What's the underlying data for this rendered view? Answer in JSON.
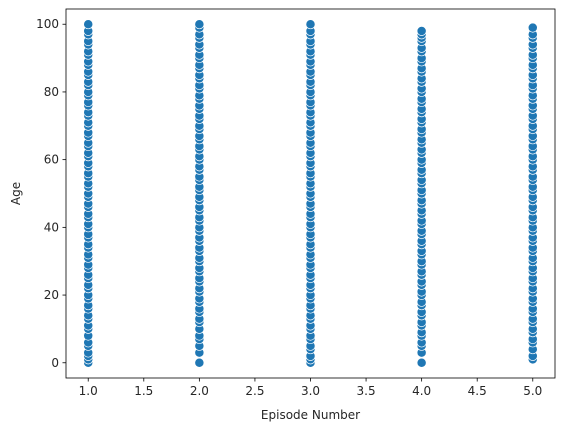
{
  "chart_data": {
    "type": "scatter",
    "title": "",
    "xlabel": "Episode Number",
    "ylabel": "Age",
    "xlim": [
      0.8,
      5.2
    ],
    "ylim": [
      -4.5,
      104.5
    ],
    "xticks": [
      1.0,
      1.5,
      2.0,
      2.5,
      3.0,
      3.5,
      4.0,
      4.5,
      5.0
    ],
    "xtick_labels": [
      "1.0",
      "1.5",
      "2.0",
      "2.5",
      "3.0",
      "3.5",
      "4.0",
      "4.5",
      "5.0"
    ],
    "yticks": [
      0,
      20,
      40,
      60,
      80,
      100
    ],
    "ytick_labels": [
      "0",
      "20",
      "40",
      "60",
      "80",
      "100"
    ],
    "grid": false,
    "marker_color": "#1f77b4",
    "marker_edge_color": "#ffffff",
    "series": [
      {
        "x": 1.0,
        "y": [
          0,
          1,
          2,
          3,
          5,
          6,
          8,
          10,
          11,
          13,
          14,
          16,
          17,
          19,
          20,
          22,
          23,
          25,
          26,
          28,
          29,
          31,
          32,
          34,
          35,
          37,
          38,
          40,
          41,
          43,
          44,
          46,
          47,
          49,
          50,
          52,
          53,
          55,
          56,
          58,
          59,
          61,
          62,
          64,
          65,
          67,
          68,
          70,
          71,
          73,
          74,
          76,
          77,
          79,
          80,
          82,
          83,
          85,
          86,
          88,
          89,
          91,
          92,
          94,
          95,
          97,
          98,
          100
        ]
      },
      {
        "x": 2.0,
        "y": [
          0,
          3,
          5,
          7,
          8,
          10,
          12,
          13,
          15,
          16,
          18,
          19,
          21,
          22,
          24,
          25,
          27,
          28,
          30,
          31,
          33,
          34,
          36,
          37,
          39,
          40,
          42,
          43,
          45,
          46,
          48,
          49,
          51,
          52,
          54,
          55,
          57,
          58,
          60,
          61,
          63,
          64,
          66,
          67,
          69,
          70,
          72,
          73,
          75,
          76,
          78,
          79,
          81,
          82,
          84,
          85,
          87,
          88,
          90,
          91,
          93,
          94,
          96,
          97,
          99,
          100
        ]
      },
      {
        "x": 3.0,
        "y": [
          0,
          1,
          2,
          4,
          5,
          7,
          8,
          10,
          11,
          13,
          14,
          16,
          17,
          19,
          20,
          22,
          23,
          25,
          26,
          28,
          29,
          31,
          32,
          34,
          35,
          37,
          38,
          40,
          41,
          43,
          44,
          46,
          47,
          49,
          50,
          52,
          53,
          55,
          56,
          58,
          59,
          61,
          62,
          64,
          65,
          67,
          68,
          70,
          71,
          73,
          74,
          76,
          77,
          79,
          80,
          82,
          83,
          85,
          86,
          88,
          89,
          91,
          92,
          94,
          95,
          97,
          98,
          100
        ]
      },
      {
        "x": 4.0,
        "y": [
          0,
          3,
          5,
          6,
          8,
          9,
          11,
          12,
          14,
          15,
          17,
          18,
          20,
          21,
          23,
          24,
          26,
          27,
          29,
          30,
          32,
          33,
          35,
          36,
          38,
          39,
          41,
          42,
          44,
          45,
          47,
          48,
          50,
          51,
          53,
          54,
          56,
          57,
          59,
          60,
          62,
          63,
          65,
          66,
          68,
          69,
          71,
          72,
          74,
          75,
          77,
          78,
          80,
          81,
          83,
          84,
          86,
          87,
          89,
          90,
          92,
          93,
          95,
          96,
          97,
          98
        ]
      },
      {
        "x": 5.0,
        "y": [
          1,
          2,
          4,
          6,
          7,
          9,
          10,
          12,
          13,
          15,
          16,
          18,
          19,
          21,
          22,
          24,
          25,
          27,
          28,
          30,
          31,
          33,
          34,
          36,
          37,
          39,
          40,
          42,
          43,
          45,
          46,
          48,
          49,
          51,
          52,
          54,
          55,
          57,
          58,
          60,
          61,
          63,
          64,
          66,
          67,
          69,
          70,
          72,
          73,
          75,
          76,
          78,
          79,
          81,
          82,
          84,
          85,
          87,
          88,
          90,
          91,
          93,
          94,
          96,
          97,
          99
        ]
      }
    ]
  }
}
